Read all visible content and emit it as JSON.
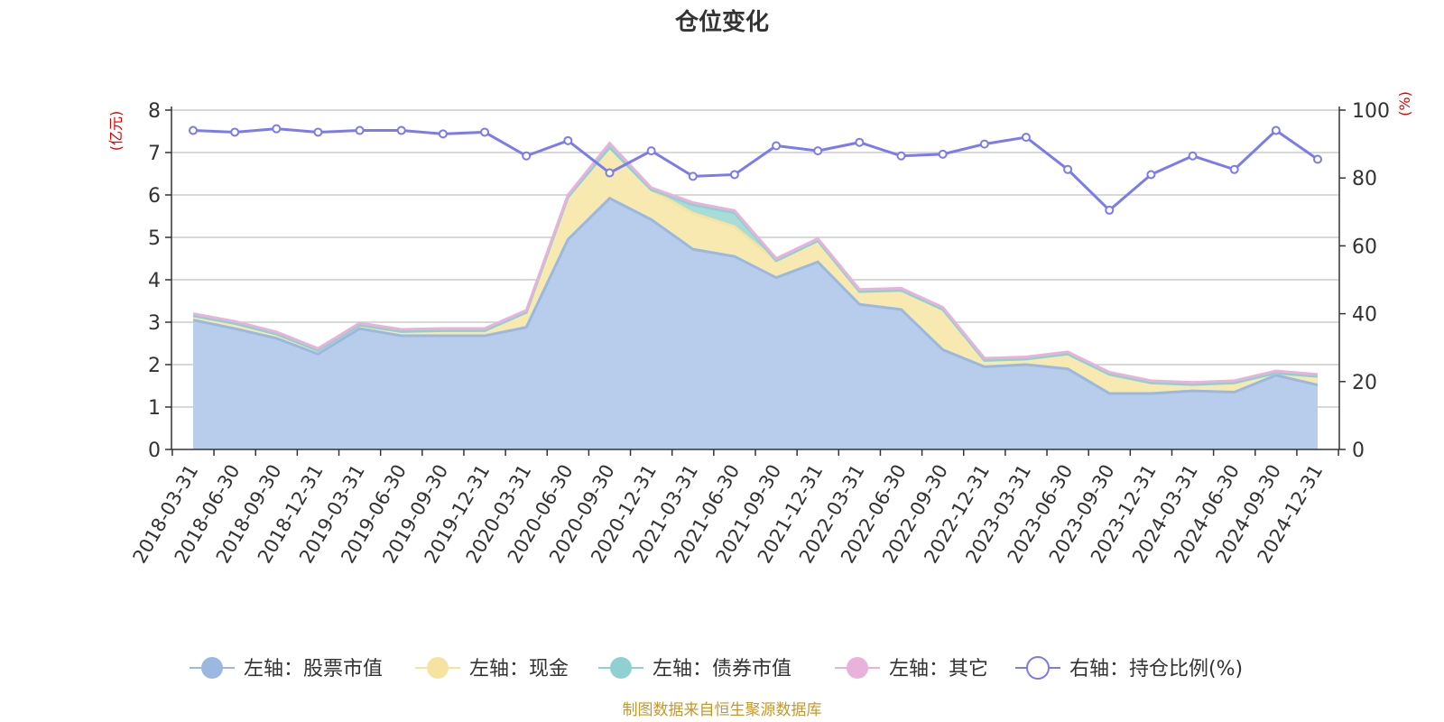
{
  "chart_data": {
    "type": "area",
    "title": "仓位变化",
    "left_unit": "(亿元)",
    "right_unit": "(%)",
    "ylim_left": [
      0,
      8
    ],
    "ylim_right": [
      0,
      100
    ],
    "left_ticks": [
      0,
      1,
      2,
      3,
      4,
      5,
      6,
      7,
      8
    ],
    "right_ticks": [
      0,
      20,
      40,
      60,
      80,
      100
    ],
    "categories": [
      "2018-03-31",
      "2018-06-30",
      "2018-09-30",
      "2018-12-31",
      "2019-03-31",
      "2019-06-30",
      "2019-09-30",
      "2019-12-31",
      "2020-03-31",
      "2020-06-30",
      "2020-09-30",
      "2020-12-31",
      "2021-03-31",
      "2021-06-30",
      "2021-09-30",
      "2021-12-31",
      "2022-03-31",
      "2022-06-30",
      "2022-09-30",
      "2022-12-31",
      "2023-03-31",
      "2023-06-30",
      "2023-09-30",
      "2023-12-31",
      "2024-03-31",
      "2024-06-30",
      "2024-09-30",
      "2024-12-31"
    ],
    "series": [
      {
        "name": "左轴：股票市值",
        "axis": "left",
        "color": "#9bb8e0",
        "fill": "#b7cdeb",
        "values": [
          3.05,
          2.85,
          2.62,
          2.25,
          2.85,
          2.68,
          2.68,
          2.68,
          2.88,
          4.95,
          5.92,
          5.42,
          4.72,
          4.55,
          4.05,
          4.42,
          3.42,
          3.3,
          2.35,
          1.95,
          2.0,
          1.9,
          1.32,
          1.32,
          1.38,
          1.35,
          1.75,
          1.52
        ]
      },
      {
        "name": "左轴：现金",
        "axis": "left",
        "color": "#f5e3a0",
        "fill": "#f8e9b0",
        "values": [
          0.1,
          0.12,
          0.1,
          0.08,
          0.08,
          0.1,
          0.12,
          0.12,
          0.35,
          1.0,
          1.2,
          0.7,
          0.85,
          0.7,
          0.4,
          0.5,
          0.3,
          0.45,
          0.95,
          0.15,
          0.13,
          0.35,
          0.45,
          0.25,
          0.15,
          0.22,
          0.05,
          0.2
        ]
      },
      {
        "name": "左轴：债券市值",
        "axis": "left",
        "color": "#8fd0d0",
        "fill": "#a8dcd8",
        "values": [
          0,
          0,
          0,
          0,
          0,
          0,
          0,
          0,
          0,
          0,
          0,
          0,
          0.2,
          0.33,
          0,
          0,
          0,
          0,
          0,
          0,
          0,
          0,
          0,
          0,
          0,
          0,
          0,
          0
        ]
      },
      {
        "name": "左轴：其它",
        "axis": "left",
        "color": "#e8b2da",
        "fill": "#efc7e4",
        "values": [
          0.05,
          0.05,
          0.05,
          0.05,
          0.05,
          0.05,
          0.05,
          0.05,
          0.05,
          0.05,
          0.1,
          0.05,
          0.05,
          0.05,
          0.05,
          0.05,
          0.05,
          0.05,
          0.05,
          0.05,
          0.05,
          0.05,
          0.05,
          0.05,
          0.05,
          0.05,
          0.05,
          0.05
        ]
      },
      {
        "name": "右轴：持仓比例(%)",
        "axis": "right",
        "color": "#7b7bee",
        "values": [
          94,
          93.5,
          94.5,
          93.5,
          94,
          94,
          93,
          93.5,
          86.5,
          91,
          81.5,
          88,
          80.5,
          81,
          89.5,
          88,
          90.5,
          86.5,
          87,
          90,
          92,
          82.5,
          70.5,
          81,
          86.5,
          82.5,
          94,
          85.5
        ]
      }
    ],
    "legend_position": "bottom-center"
  },
  "footer": {
    "source": "制图数据来自恒生聚源数据库"
  }
}
